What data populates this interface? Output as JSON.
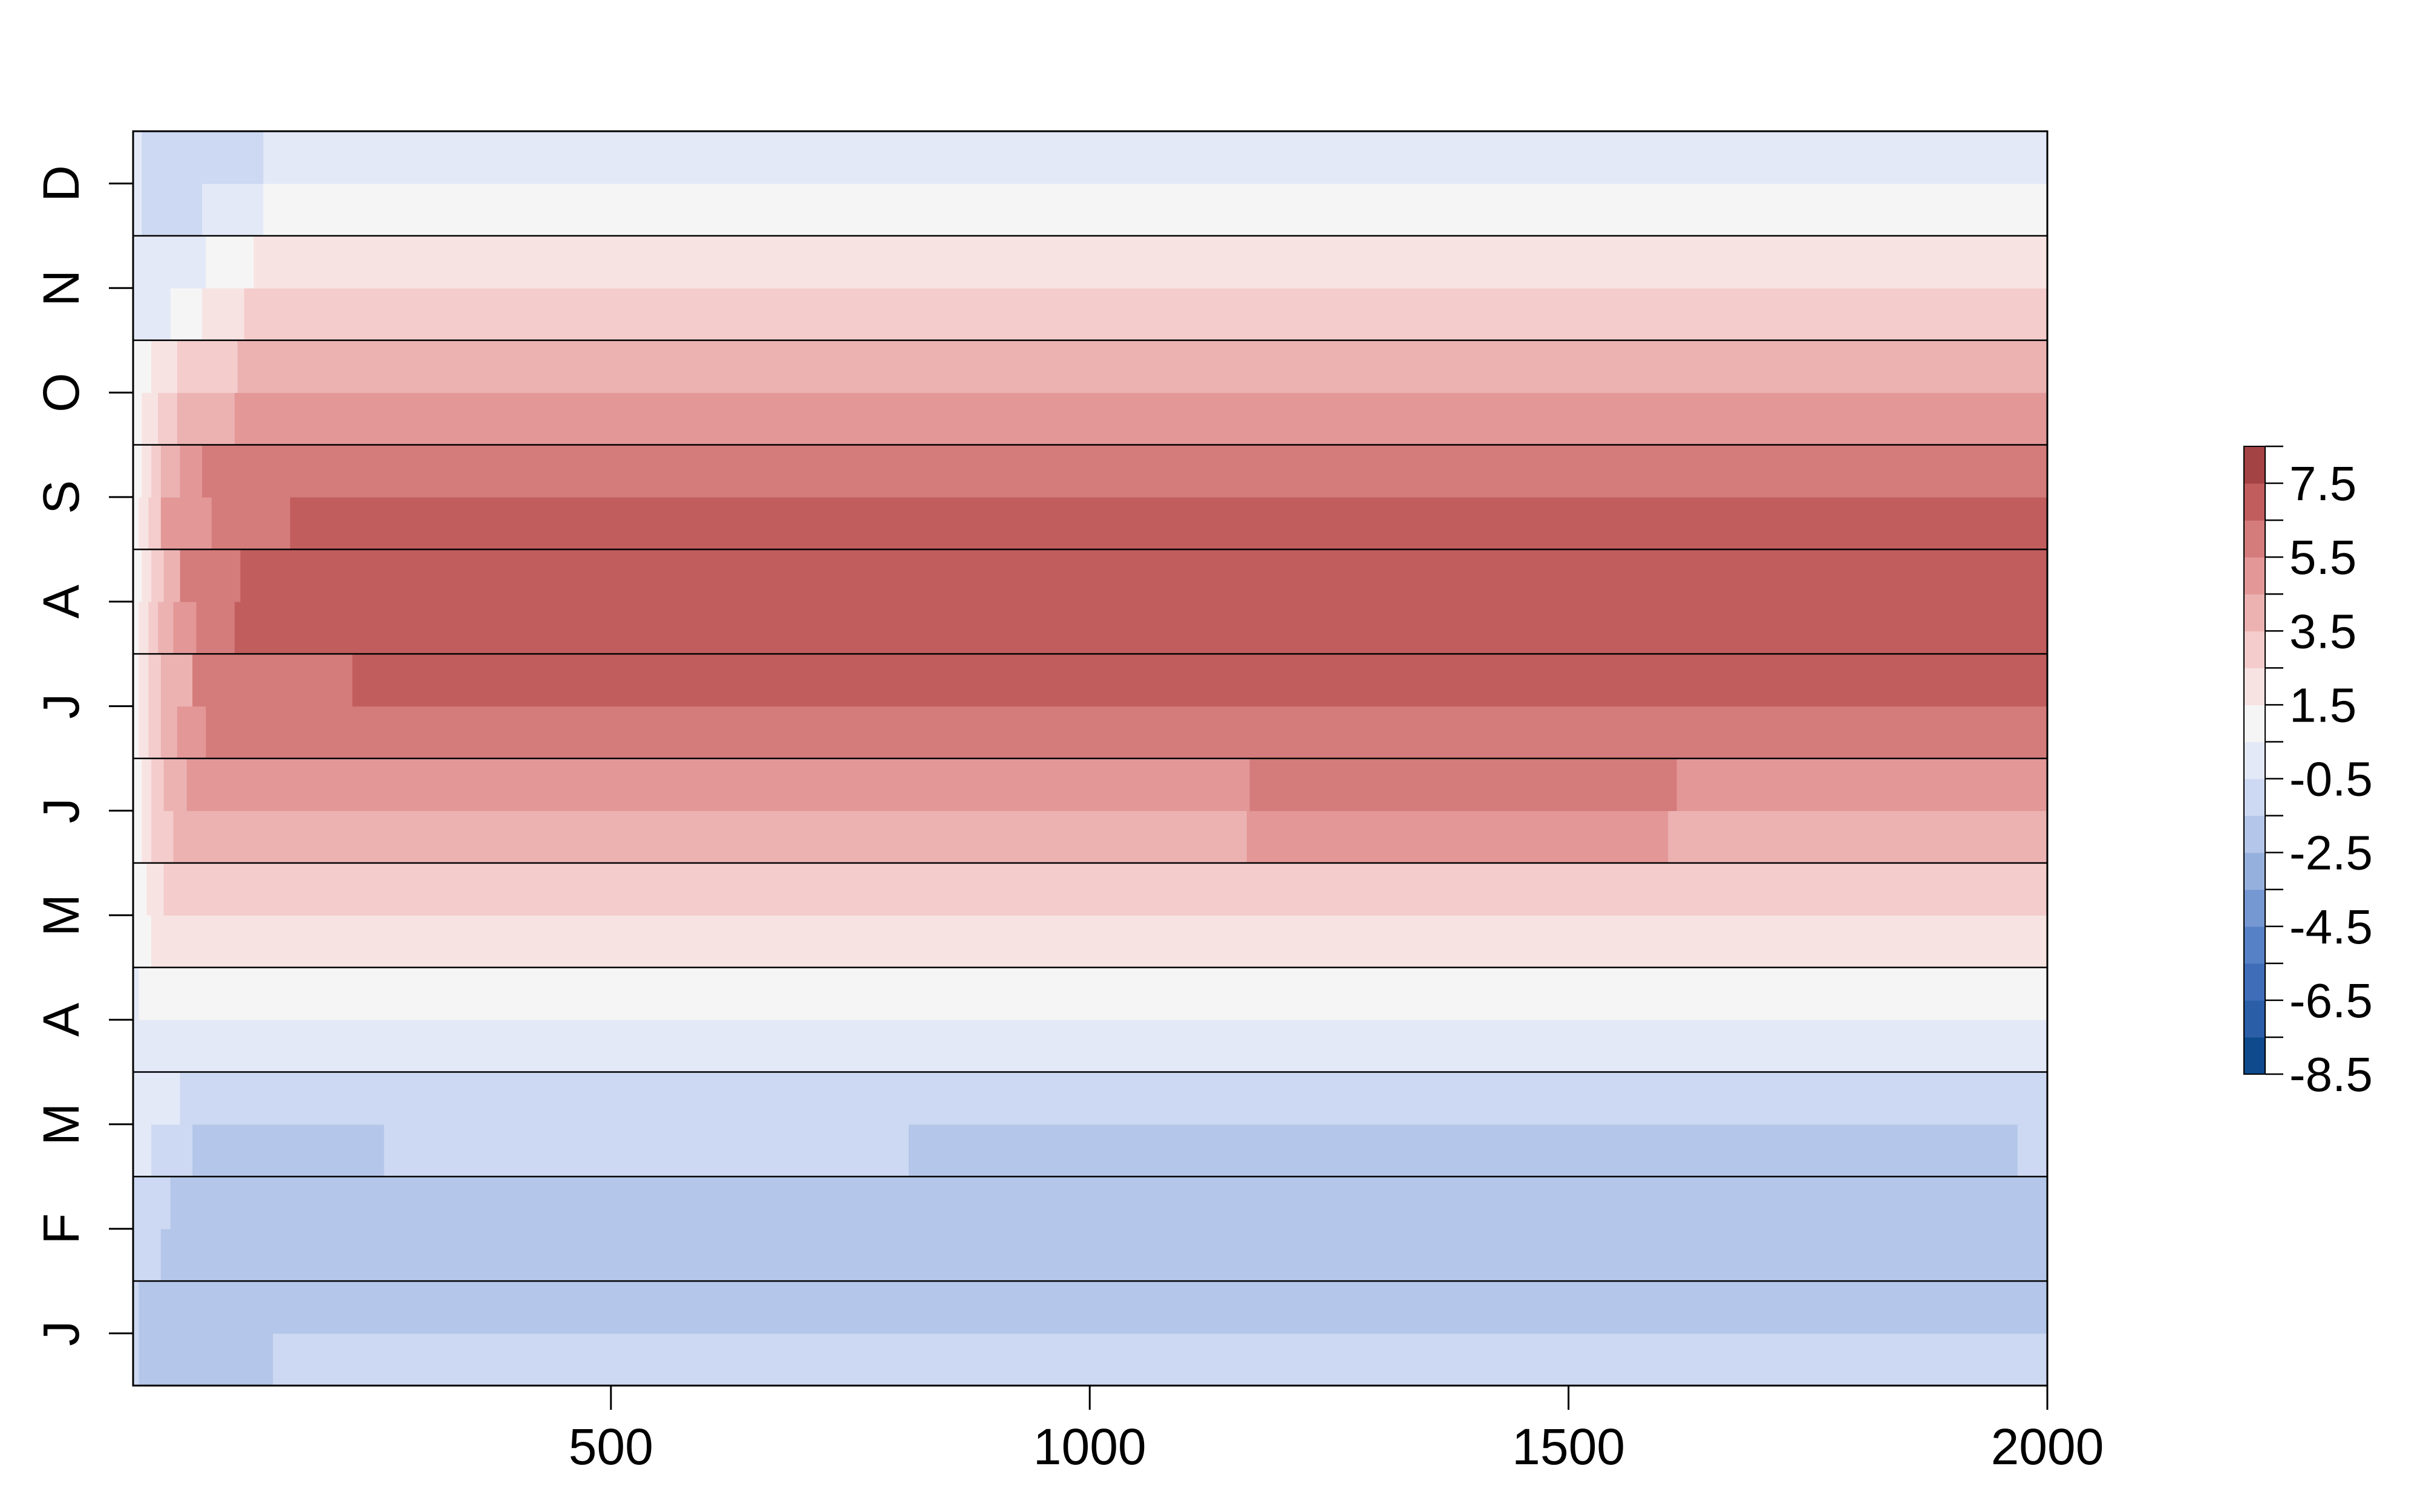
{
  "chart_data": {
    "type": "heatmap",
    "title": "",
    "xlabel": "",
    "ylabel": "",
    "xlim": [
      1,
      2000
    ],
    "x_ticks": [
      "500",
      "1000",
      "1500",
      "2000"
    ],
    "x_tick_values": [
      500,
      1000,
      1500,
      2000
    ],
    "months": [
      "J",
      "F",
      "M",
      "A",
      "M",
      "J",
      "J",
      "A",
      "S",
      "O",
      "N",
      "D"
    ],
    "rows_per_month": 2,
    "row_order": "bottom-to-top",
    "rows": [
      [
        {
          "x0": 1,
          "x1": 7,
          "v": -1.5
        },
        {
          "x0": 7,
          "x1": 27,
          "v": -2.5
        },
        {
          "x0": 27,
          "x1": 147,
          "v": -2.5
        },
        {
          "x0": 147,
          "x1": 2000,
          "v": -1.5
        }
      ],
      [
        {
          "x0": 1,
          "x1": 7,
          "v": -1.5
        },
        {
          "x0": 7,
          "x1": 27,
          "v": -2.5
        },
        {
          "x0": 27,
          "x1": 2000,
          "v": -2.5
        }
      ],
      [
        {
          "x0": 1,
          "x1": 10,
          "v": -1.5
        },
        {
          "x0": 10,
          "x1": 30,
          "v": -1.5
        },
        {
          "x0": 30,
          "x1": 2000,
          "v": -2.5
        }
      ],
      [
        {
          "x0": 1,
          "x1": 13,
          "v": -1.5
        },
        {
          "x0": 13,
          "x1": 40,
          "v": -1.5
        },
        {
          "x0": 40,
          "x1": 2000,
          "v": -2.5
        }
      ],
      [
        {
          "x0": 1,
          "x1": 20,
          "v": -0.5
        },
        {
          "x0": 20,
          "x1": 63,
          "v": -1.5
        },
        {
          "x0": 63,
          "x1": 263,
          "v": -2.5
        },
        {
          "x0": 263,
          "x1": 811,
          "v": -1.5
        },
        {
          "x0": 811,
          "x1": 1969,
          "v": -2.5
        },
        {
          "x0": 1969,
          "x1": 2000,
          "v": -1.5
        }
      ],
      [
        {
          "x0": 1,
          "x1": 50,
          "v": -0.5
        },
        {
          "x0": 50,
          "x1": 2000,
          "v": -1.5
        }
      ],
      [
        {
          "x0": 1,
          "x1": 2000,
          "v": -0.5
        }
      ],
      [
        {
          "x0": 1,
          "x1": 7,
          "v": -0.5
        },
        {
          "x0": 7,
          "x1": 2000,
          "v": 0.5
        }
      ],
      [
        {
          "x0": 1,
          "x1": 20,
          "v": 0.5
        },
        {
          "x0": 20,
          "x1": 2000,
          "v": 1.5
        }
      ],
      [
        {
          "x0": 1,
          "x1": 15,
          "v": 0.5
        },
        {
          "x0": 15,
          "x1": 33,
          "v": 1.5
        },
        {
          "x0": 33,
          "x1": 2000,
          "v": 2.5
        }
      ],
      [
        {
          "x0": 1,
          "x1": 10,
          "v": 0.5
        },
        {
          "x0": 10,
          "x1": 20,
          "v": 1.5
        },
        {
          "x0": 20,
          "x1": 43,
          "v": 2.5
        },
        {
          "x0": 43,
          "x1": 1164,
          "v": 3.5
        },
        {
          "x0": 1164,
          "x1": 1604,
          "v": 4.5
        },
        {
          "x0": 1604,
          "x1": 2000,
          "v": 3.5
        }
      ],
      [
        {
          "x0": 1,
          "x1": 10,
          "v": 0.5
        },
        {
          "x0": 10,
          "x1": 20,
          "v": 1.5
        },
        {
          "x0": 20,
          "x1": 33,
          "v": 2.5
        },
        {
          "x0": 33,
          "x1": 57,
          "v": 3.5
        },
        {
          "x0": 57,
          "x1": 1167,
          "v": 4.5
        },
        {
          "x0": 1167,
          "x1": 1613,
          "v": 5.5
        },
        {
          "x0": 1613,
          "x1": 2000,
          "v": 4.5
        }
      ],
      [
        {
          "x0": 1,
          "x1": 7,
          "v": 0.5
        },
        {
          "x0": 7,
          "x1": 17,
          "v": 1.5
        },
        {
          "x0": 17,
          "x1": 30,
          "v": 2.5
        },
        {
          "x0": 30,
          "x1": 47,
          "v": 3.5
        },
        {
          "x0": 47,
          "x1": 77,
          "v": 4.5
        },
        {
          "x0": 77,
          "x1": 2000,
          "v": 5.5
        }
      ],
      [
        {
          "x0": 1,
          "x1": 7,
          "v": 0.5
        },
        {
          "x0": 7,
          "x1": 17,
          "v": 1.5
        },
        {
          "x0": 17,
          "x1": 30,
          "v": 2.5
        },
        {
          "x0": 30,
          "x1": 63,
          "v": 3.5
        },
        {
          "x0": 63,
          "x1": 230,
          "v": 5.5
        },
        {
          "x0": 230,
          "x1": 2000,
          "v": 6.5
        }
      ],
      [
        {
          "x0": 1,
          "x1": 7,
          "v": 0.5
        },
        {
          "x0": 7,
          "x1": 17,
          "v": 1.5
        },
        {
          "x0": 17,
          "x1": 27,
          "v": 2.5
        },
        {
          "x0": 27,
          "x1": 43,
          "v": 3.5
        },
        {
          "x0": 43,
          "x1": 67,
          "v": 4.5
        },
        {
          "x0": 67,
          "x1": 107,
          "v": 5.5
        },
        {
          "x0": 107,
          "x1": 2000,
          "v": 6.5
        }
      ],
      [
        {
          "x0": 1,
          "x1": 10,
          "v": 0.5
        },
        {
          "x0": 10,
          "x1": 20,
          "v": 1.5
        },
        {
          "x0": 20,
          "x1": 33,
          "v": 2.5
        },
        {
          "x0": 33,
          "x1": 50,
          "v": 3.5
        },
        {
          "x0": 50,
          "x1": 113,
          "v": 5.5
        },
        {
          "x0": 113,
          "x1": 2000,
          "v": 6.5
        }
      ],
      [
        {
          "x0": 1,
          "x1": 7,
          "v": 0.5
        },
        {
          "x0": 7,
          "x1": 17,
          "v": 1.5
        },
        {
          "x0": 17,
          "x1": 30,
          "v": 2.5
        },
        {
          "x0": 30,
          "x1": 83,
          "v": 4.5
        },
        {
          "x0": 83,
          "x1": 165,
          "v": 5.5
        },
        {
          "x0": 165,
          "x1": 2000,
          "v": 6.5
        }
      ],
      [
        {
          "x0": 1,
          "x1": 10,
          "v": 0.5
        },
        {
          "x0": 10,
          "x1": 20,
          "v": 1.5
        },
        {
          "x0": 20,
          "x1": 30,
          "v": 2.5
        },
        {
          "x0": 30,
          "x1": 50,
          "v": 3.5
        },
        {
          "x0": 50,
          "x1": 73,
          "v": 4.5
        },
        {
          "x0": 73,
          "x1": 2000,
          "v": 5.5
        }
      ],
      [
        {
          "x0": 1,
          "x1": 10,
          "v": 0.5
        },
        {
          "x0": 10,
          "x1": 27,
          "v": 1.5
        },
        {
          "x0": 27,
          "x1": 47,
          "v": 2.5
        },
        {
          "x0": 47,
          "x1": 107,
          "v": 3.5
        },
        {
          "x0": 107,
          "x1": 2000,
          "v": 4.5
        }
      ],
      [
        {
          "x0": 1,
          "x1": 20,
          "v": 0.5
        },
        {
          "x0": 20,
          "x1": 47,
          "v": 1.5
        },
        {
          "x0": 47,
          "x1": 110,
          "v": 2.5
        },
        {
          "x0": 110,
          "x1": 2000,
          "v": 3.5
        }
      ],
      [
        {
          "x0": 1,
          "x1": 40,
          "v": -0.5
        },
        {
          "x0": 40,
          "x1": 73,
          "v": 0.5
        },
        {
          "x0": 73,
          "x1": 117,
          "v": 1.5
        },
        {
          "x0": 117,
          "x1": 2000,
          "v": 2.5
        }
      ],
      [
        {
          "x0": 1,
          "x1": 77,
          "v": -0.5
        },
        {
          "x0": 77,
          "x1": 127,
          "v": 0.5
        },
        {
          "x0": 127,
          "x1": 2000,
          "v": 1.5
        }
      ],
      [
        {
          "x0": 1,
          "x1": 10,
          "v": -0.5
        },
        {
          "x0": 10,
          "x1": 73,
          "v": -1.5
        },
        {
          "x0": 73,
          "x1": 137,
          "v": -0.5
        },
        {
          "x0": 137,
          "x1": 2000,
          "v": 0.5
        }
      ],
      [
        {
          "x0": 1,
          "x1": 10,
          "v": -0.5
        },
        {
          "x0": 10,
          "x1": 137,
          "v": -1.5
        },
        {
          "x0": 137,
          "x1": 300,
          "v": -0.5
        },
        {
          "x0": 300,
          "x1": 2000,
          "v": -0.5
        }
      ]
    ],
    "colorbar": {
      "min": -8.5,
      "max": 8.5,
      "step": 1,
      "labels": [
        "-8.5",
        "-6.5",
        "-4.5",
        "-2.5",
        "-0.5",
        "1.5",
        "3.5",
        "5.5",
        "7.5"
      ],
      "label_values": [
        -8.5,
        -6.5,
        -4.5,
        -2.5,
        -0.5,
        1.5,
        3.5,
        5.5,
        7.5
      ],
      "colors": [
        "#0E4A8C",
        "#2A5EA7",
        "#3F6DB8",
        "#5781C6",
        "#7598D2",
        "#95B0DD",
        "#B4C6E9",
        "#CDD8F2",
        "#E4E9F8",
        "#F5F5F5",
        "#F8E3E3",
        "#F4CCCC",
        "#ECB2B2",
        "#E39797",
        "#D47B7B",
        "#C15D5D",
        "#A44343"
      ]
    }
  }
}
